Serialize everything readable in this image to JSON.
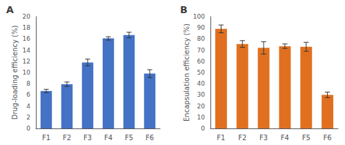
{
  "chart_data": [
    {
      "type": "bar",
      "title": "A",
      "categories": [
        "F1",
        "F2",
        "F3",
        "F4",
        "F5",
        "F6"
      ],
      "values": [
        6.7,
        7.9,
        11.8,
        16.1,
        16.7,
        9.8
      ],
      "errors": [
        0.3,
        0.4,
        0.6,
        0.3,
        0.5,
        0.7
      ],
      "color": "#4472c4",
      "ylabel": "Drug-loading efficiency (%)",
      "ylim": [
        0,
        20
      ],
      "yticks": [
        0,
        2,
        4,
        6,
        8,
        10,
        12,
        14,
        16,
        18,
        20
      ]
    },
    {
      "type": "bar",
      "title": "B",
      "categories": [
        "F1",
        "F2",
        "F3",
        "F4",
        "F5",
        "F6"
      ],
      "values": [
        89.0,
        75.5,
        72.0,
        73.5,
        73.0,
        30.0
      ],
      "errors": [
        3.5,
        3.0,
        5.5,
        2.0,
        4.0,
        2.5
      ],
      "color": "#e07020",
      "ylabel": "Encapsulation efficiency (%)",
      "ylim": [
        0,
        100
      ],
      "yticks": [
        0,
        10,
        20,
        30,
        40,
        50,
        60,
        70,
        80,
        90,
        100
      ]
    }
  ]
}
